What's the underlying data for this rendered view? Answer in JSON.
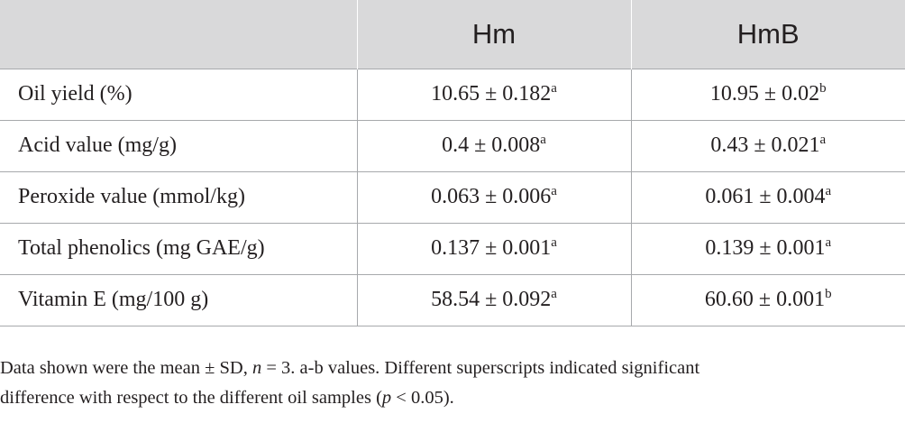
{
  "table": {
    "headers": [
      "",
      "Hm",
      "HmB"
    ],
    "rows": [
      {
        "label": "Oil yield (%)",
        "hm": {
          "value": "10.65 ± 0.182",
          "sup": "a"
        },
        "hmb": {
          "value": "10.95 ± 0.02",
          "sup": "b"
        }
      },
      {
        "label": "Acid value (mg/g)",
        "hm": {
          "value": "0.4 ± 0.008",
          "sup": "a"
        },
        "hmb": {
          "value": "0.43 ± 0.021",
          "sup": "a"
        }
      },
      {
        "label": "Peroxide value (mmol/kg)",
        "hm": {
          "value": "0.063 ± 0.006",
          "sup": "a"
        },
        "hmb": {
          "value": "0.061 ± 0.004",
          "sup": "a"
        }
      },
      {
        "label": "Total phenolics (mg GAE/g)",
        "hm": {
          "value": "0.137 ± 0.001",
          "sup": "a"
        },
        "hmb": {
          "value": "0.139 ± 0.001",
          "sup": "a"
        }
      },
      {
        "label": "Vitamin E (mg/100 g)",
        "hm": {
          "value": "58.54 ± 0.092",
          "sup": "a"
        },
        "hmb": {
          "value": "60.60 ± 0.001",
          "sup": "b"
        }
      }
    ]
  },
  "footnote": {
    "line1_a": "Data shown were the mean ± SD, ",
    "line1_n": "n",
    "line1_b": " = 3. a-b values. Different superscripts indicated significant",
    "line2_a": "difference with respect to the different oil samples (",
    "line2_p": "p",
    "line2_b": " < 0.05)."
  },
  "colors": {
    "header_bg": "#d9d9da",
    "rule": "#a7a9ac",
    "text": "#231f20"
  }
}
